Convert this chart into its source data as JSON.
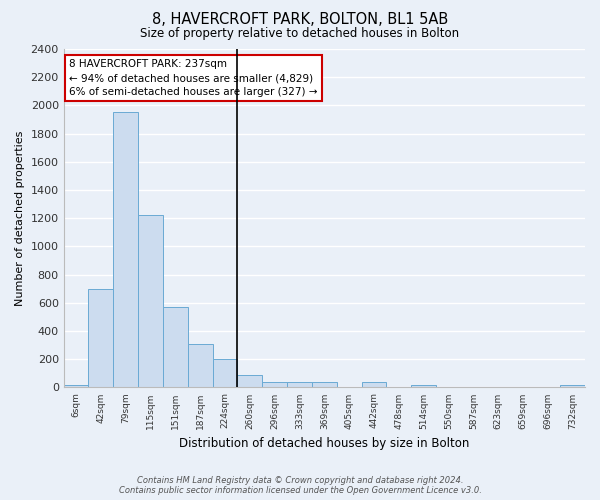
{
  "title": "8, HAVERCROFT PARK, BOLTON, BL1 5AB",
  "subtitle": "Size of property relative to detached houses in Bolton",
  "xlabel": "Distribution of detached houses by size in Bolton",
  "ylabel": "Number of detached properties",
  "bin_labels": [
    "6sqm",
    "42sqm",
    "79sqm",
    "115sqm",
    "151sqm",
    "187sqm",
    "224sqm",
    "260sqm",
    "296sqm",
    "333sqm",
    "369sqm",
    "405sqm",
    "442sqm",
    "478sqm",
    "514sqm",
    "550sqm",
    "587sqm",
    "623sqm",
    "659sqm",
    "696sqm",
    "732sqm"
  ],
  "bar_values": [
    20,
    700,
    1950,
    1220,
    570,
    310,
    200,
    85,
    40,
    35,
    35,
    0,
    35,
    0,
    20,
    0,
    0,
    0,
    0,
    0,
    20
  ],
  "bar_color": "#ccdcef",
  "bar_edgecolor": "#6aaad4",
  "vline_color": "#000000",
  "vline_index": 6.5,
  "annotation_line1": "8 HAVERCROFT PARK: 237sqm",
  "annotation_line2": "← 94% of detached houses are smaller (4,829)",
  "annotation_line3": "6% of semi-detached houses are larger (327) →",
  "annotation_box_facecolor": "#ffffff",
  "annotation_box_edgecolor": "#cc0000",
  "ylim": [
    0,
    2400
  ],
  "yticks": [
    0,
    200,
    400,
    600,
    800,
    1000,
    1200,
    1400,
    1600,
    1800,
    2000,
    2200,
    2400
  ],
  "bg_color": "#eaf0f8",
  "plot_bg_color": "#eaf0f8",
  "grid_color": "#ffffff",
  "footer_line1": "Contains HM Land Registry data © Crown copyright and database right 2024.",
  "footer_line2": "Contains public sector information licensed under the Open Government Licence v3.0."
}
